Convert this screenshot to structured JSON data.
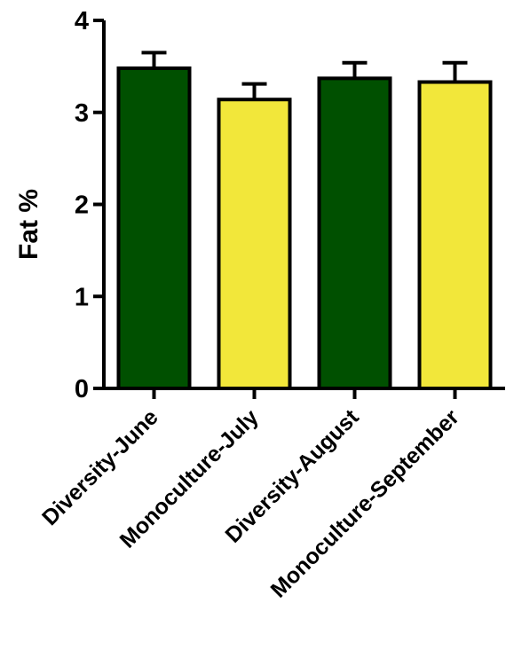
{
  "chart_data": {
    "type": "bar",
    "title": "",
    "xlabel": "",
    "ylabel": "Fat %",
    "ylim": [
      0,
      4
    ],
    "yticks": [
      "0",
      "1",
      "2",
      "3",
      "4"
    ],
    "grid": false,
    "legend": "none",
    "categories": [
      "Diversity-June",
      "Monoculture-July",
      "Diversity-August",
      "Monoculture-September"
    ],
    "values": [
      3.48,
      3.14,
      3.37,
      3.33
    ],
    "error_upper": [
      0.17,
      0.17,
      0.17,
      0.21
    ],
    "bar_colors": [
      "#005000",
      "#f2e73a",
      "#005000",
      "#f2e73a"
    ],
    "edge_color": "#000000"
  }
}
